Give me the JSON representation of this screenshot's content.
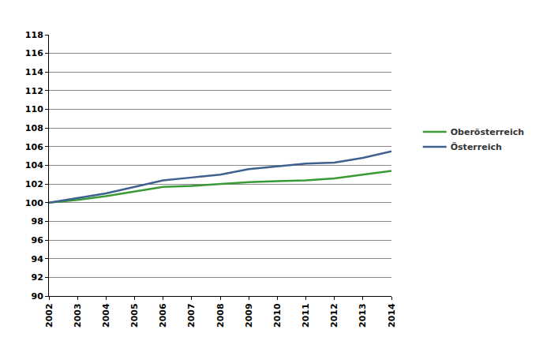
{
  "chart_data": {
    "type": "line",
    "x": [
      2002,
      2003,
      2004,
      2005,
      2006,
      2007,
      2008,
      2009,
      2010,
      2011,
      2012,
      2013,
      2014
    ],
    "series": [
      {
        "name": "Oberösterreich",
        "color": "#3a9a35",
        "values": [
          100,
          100.3,
          100.7,
          101.2,
          101.7,
          101.8,
          102.0,
          102.2,
          102.3,
          102.4,
          102.6,
          103.0,
          103.4
        ]
      },
      {
        "name": "Österreich",
        "color": "#3f6190",
        "values": [
          100,
          100.5,
          101.0,
          101.7,
          102.4,
          102.7,
          103.0,
          103.6,
          103.9,
          104.2,
          104.3,
          104.8,
          105.5
        ]
      }
    ],
    "xlim": [
      2002,
      2014
    ],
    "xticks": [
      2002,
      2003,
      2004,
      2005,
      2006,
      2007,
      2008,
      2009,
      2010,
      2011,
      2012,
      2013,
      2014
    ],
    "ylim": [
      90,
      118
    ],
    "yticks": [
      90,
      92,
      94,
      96,
      98,
      100,
      102,
      104,
      106,
      108,
      110,
      112,
      114,
      116,
      118
    ],
    "grid": true,
    "legend": "right"
  }
}
